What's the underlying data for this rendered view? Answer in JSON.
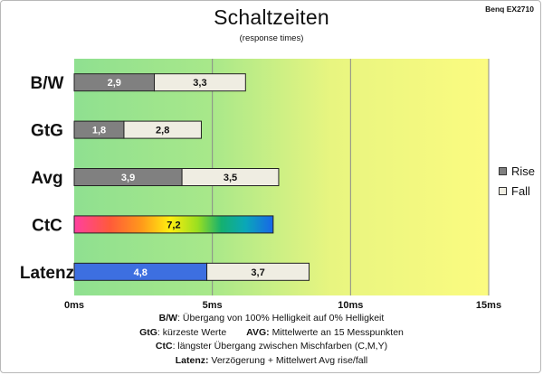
{
  "header": {
    "title": "Schaltzeiten",
    "subtitle": "(response times)",
    "model": "Benq EX2710"
  },
  "colors": {
    "rise": "#808080",
    "fall": "#efede2",
    "latency": "#3d6fe0",
    "plot_green": "#8fe090",
    "plot_yellow": "#fbfb80"
  },
  "chart_data": {
    "type": "bar",
    "orientation": "horizontal",
    "stacked": true,
    "categories": [
      "B/W",
      "GtG",
      "Avg",
      "CtC",
      "Latenz"
    ],
    "series": [
      {
        "name": "Rise",
        "values": [
          2.9,
          1.8,
          3.9,
          7.2,
          4.8
        ]
      },
      {
        "name": "Fall",
        "values": [
          3.3,
          2.8,
          3.5,
          null,
          3.7
        ]
      }
    ],
    "value_labels": [
      [
        "2,9",
        "3,3"
      ],
      [
        "1,8",
        "2,8"
      ],
      [
        "3,9",
        "3,5"
      ],
      [
        "7,2",
        ""
      ],
      [
        "4,8",
        "3,7"
      ]
    ],
    "xlim": [
      0,
      15
    ],
    "xticks": [
      0,
      5,
      10,
      15
    ],
    "xtick_labels": [
      "0ms",
      "5ms",
      "10ms",
      "15ms"
    ],
    "grid": true,
    "legend_position": "right"
  },
  "legend": {
    "items": [
      {
        "label": "Rise",
        "color": "#808080"
      },
      {
        "label": "Fall",
        "color": "#efede2"
      }
    ]
  },
  "notes": {
    "bw_key": "B/W",
    "bw_text": ":  Übergang von 100% Helligkeit auf 0% Helligkeit",
    "gtg_key": "GtG",
    "gtg_text": ": kürzeste  Werte",
    "avg_key": "AVG:",
    "avg_text": " Mittelwerte  an 15 Messpunkten",
    "ctc_key": "CtC",
    "ctc_text": ": längster Übergang  zwischen Mischfarben  (C,M,Y)",
    "lat_key": "Latenz:",
    "lat_text": " Verzögerung  + Mittelwert Avg rise/fall"
  }
}
